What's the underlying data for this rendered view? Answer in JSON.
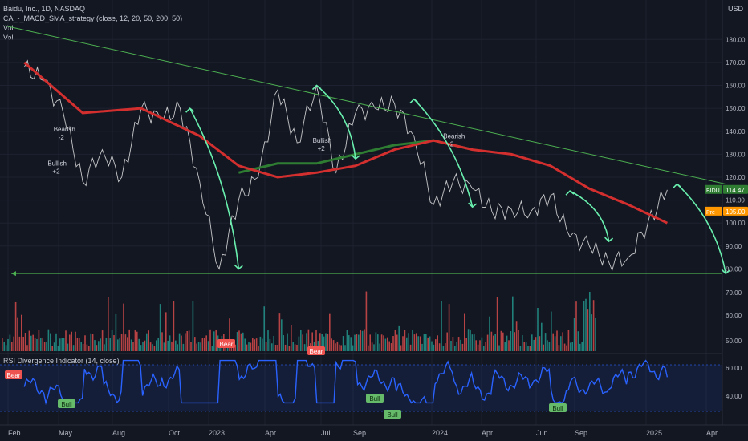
{
  "header": {
    "symbol_line": "Baidu, Inc., 1D, NASDAQ",
    "strategy_line": "CA_-_MACD_SMA_strategy (close, 12, 20, 50, 200, 50)",
    "vol_line_1": "Vol",
    "vol_line_2": "Vol",
    "currency": "USD"
  },
  "rsi_pane": {
    "title": "RSI Divergence Indicator (14, close)"
  },
  "colors": {
    "background": "#131722",
    "grid": "#1e2230",
    "price_line": "#e6e6e6",
    "sma_fast": "#d32f2f",
    "sma_slow": "#2e7d32",
    "trend": "#4caf50",
    "arrow": "#69f0ae",
    "rsi": "#2962ff",
    "volume_up": "#26a69a",
    "volume_down": "#ef5350",
    "bidu_tag": "#2e7d32",
    "pre_tag": "#ff9800"
  },
  "chart_data": {
    "type": "line",
    "x_ticks": [
      "Feb",
      "May",
      "Aug",
      "Oct",
      "2023",
      "Apr",
      "Jul",
      "Sep",
      "2024",
      "Apr",
      "Jun",
      "Sep",
      "2025",
      "Apr"
    ],
    "price_axis_ticks": [
      180,
      170,
      160,
      150,
      140,
      130,
      120,
      110,
      100,
      90,
      80
    ],
    "volume_axis_ticks": [
      70,
      60,
      50
    ],
    "rsi_axis_ticks": [
      60,
      40
    ],
    "ylim": [
      75,
      185
    ],
    "price_series": {
      "name": "BIDU",
      "points": [
        [
          0,
          168
        ],
        [
          1,
          162
        ],
        [
          2,
          148
        ],
        [
          3,
          118
        ],
        [
          4,
          132
        ],
        [
          5,
          120
        ],
        [
          6,
          150
        ],
        [
          7,
          145
        ],
        [
          8,
          150
        ],
        [
          9,
          118
        ],
        [
          10,
          80
        ],
        [
          11,
          110
        ],
        [
          12,
          120
        ],
        [
          13,
          158
        ],
        [
          14,
          135
        ],
        [
          15,
          160
        ],
        [
          16,
          122
        ],
        [
          17,
          148
        ],
        [
          18,
          150
        ],
        [
          19,
          152
        ],
        [
          20,
          138
        ],
        [
          21,
          108
        ],
        [
          22,
          118
        ],
        [
          23,
          115
        ],
        [
          24,
          105
        ],
        [
          25,
          106
        ],
        [
          26,
          105
        ],
        [
          27,
          112
        ],
        [
          28,
          94
        ],
        [
          29,
          90
        ],
        [
          30,
          83
        ],
        [
          31,
          85
        ],
        [
          32,
          100
        ],
        [
          33,
          114.47
        ]
      ]
    },
    "sma_short": {
      "points": [
        [
          0,
          170
        ],
        [
          3,
          148
        ],
        [
          6,
          150
        ],
        [
          9,
          138
        ],
        [
          11,
          125
        ],
        [
          13,
          120
        ],
        [
          15,
          122
        ],
        [
          17,
          125
        ],
        [
          19,
          132
        ],
        [
          21,
          136
        ],
        [
          23,
          132
        ],
        [
          25,
          130
        ],
        [
          27,
          125
        ],
        [
          29,
          115
        ],
        [
          31,
          108
        ],
        [
          33,
          100
        ]
      ]
    },
    "sma_long": {
      "points": [
        [
          11,
          122
        ],
        [
          13,
          126
        ],
        [
          15,
          126
        ],
        [
          17,
          130
        ],
        [
          19,
          134
        ],
        [
          21,
          136
        ],
        [
          23,
          132
        ]
      ]
    },
    "trendline": [
      [
        -1,
        186
      ],
      [
        36,
        117
      ]
    ],
    "support": 78,
    "arrows": [
      {
        "from": [
          8.5,
          150
        ],
        "to": [
          11,
          80
        ]
      },
      {
        "from": [
          15,
          160
        ],
        "to": [
          17,
          128
        ]
      },
      {
        "from": [
          20,
          154
        ],
        "to": [
          23,
          107
        ]
      },
      {
        "from": [
          28,
          114
        ],
        "to": [
          30,
          92
        ]
      },
      {
        "from": [
          33.5,
          117
        ],
        "to": [
          36,
          78
        ]
      }
    ],
    "signals": [
      {
        "label": "Bearish",
        "value": "-2"
      },
      {
        "label": "Bullish",
        "value": "+2"
      },
      {
        "label": "Bullish",
        "value": "+2"
      },
      {
        "label": "Bearish",
        "value": "-2"
      }
    ],
    "rsi_badges": [
      "Bear",
      "Bear",
      "Bear",
      "Bull",
      "Bull",
      "Bull",
      "Bull"
    ],
    "price_tags": [
      {
        "label": "BIDU",
        "value": "114.47"
      },
      {
        "label": "Pre",
        "value": "105.00"
      }
    ]
  }
}
